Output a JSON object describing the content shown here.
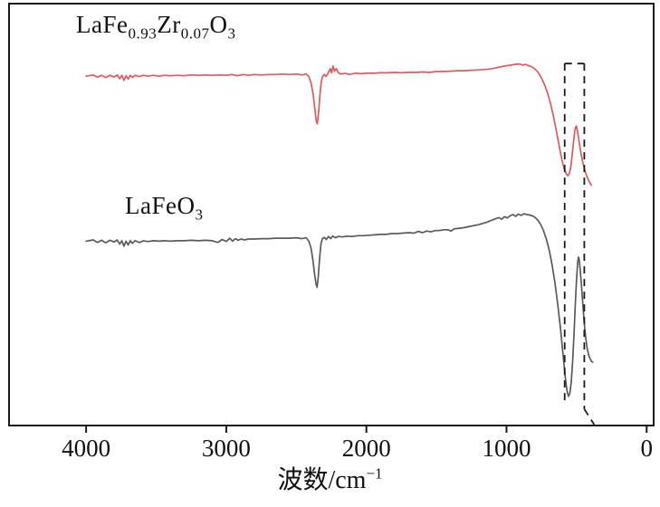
{
  "figure": {
    "background": "#ffffff",
    "frame_color": "#1a1a1a",
    "annotation_color": "#1a1a1a"
  },
  "axis": {
    "xlabel_base": "波数/cm",
    "xlabel_sup": "−1"
  },
  "labels": {
    "red": {
      "segments": [
        "LaFe",
        "0.93",
        "Zr",
        "0.07",
        "O",
        "3"
      ],
      "plain": "LaFe0.93Zr0.07O3"
    },
    "gray": {
      "segments": [
        "LaFeO",
        "3"
      ],
      "plain": "LaFeO3"
    }
  },
  "chart_data": {
    "type": "line",
    "title": "",
    "xlabel": "波数/cm⁻¹",
    "ylabel": "",
    "x_ticks": [
      4000,
      3000,
      2000,
      1000,
      0
    ],
    "xlim": [
      4550,
      -50
    ],
    "ylim": [
      0,
      1
    ],
    "grid": false,
    "legend_position": "inline-labels",
    "x_axis_reversed": true,
    "series": [
      {
        "id": "spectrum-lafe093zr007o3",
        "name": "LaFe0.93Zr0.07O3",
        "color": "#e05a5c",
        "points": [
          [
            4000,
            0.828
          ],
          [
            3950,
            0.831
          ],
          [
            3920,
            0.826
          ],
          [
            3890,
            0.83
          ],
          [
            3860,
            0.825
          ],
          [
            3830,
            0.83
          ],
          [
            3800,
            0.826
          ],
          [
            3780,
            0.831
          ],
          [
            3760,
            0.822
          ],
          [
            3745,
            0.83
          ],
          [
            3730,
            0.818
          ],
          [
            3715,
            0.829
          ],
          [
            3700,
            0.821
          ],
          [
            3685,
            0.83
          ],
          [
            3670,
            0.825
          ],
          [
            3650,
            0.83
          ],
          [
            3620,
            0.827
          ],
          [
            3590,
            0.83
          ],
          [
            3560,
            0.828
          ],
          [
            3520,
            0.83
          ],
          [
            3480,
            0.828
          ],
          [
            3440,
            0.83
          ],
          [
            3400,
            0.829
          ],
          [
            3350,
            0.83
          ],
          [
            3300,
            0.829
          ],
          [
            3250,
            0.831
          ],
          [
            3200,
            0.83
          ],
          [
            3150,
            0.831
          ],
          [
            3100,
            0.83
          ],
          [
            3050,
            0.831
          ],
          [
            3000,
            0.83
          ],
          [
            2960,
            0.832
          ],
          [
            2920,
            0.829
          ],
          [
            2880,
            0.832
          ],
          [
            2840,
            0.83
          ],
          [
            2800,
            0.832
          ],
          [
            2750,
            0.831
          ],
          [
            2700,
            0.832
          ],
          [
            2650,
            0.832
          ],
          [
            2600,
            0.833
          ],
          [
            2550,
            0.832
          ],
          [
            2500,
            0.833
          ],
          [
            2460,
            0.831
          ],
          [
            2430,
            0.833
          ],
          [
            2410,
            0.827
          ],
          [
            2395,
            0.812
          ],
          [
            2380,
            0.785
          ],
          [
            2368,
            0.752
          ],
          [
            2358,
            0.722
          ],
          [
            2350,
            0.715
          ],
          [
            2342,
            0.74
          ],
          [
            2332,
            0.782
          ],
          [
            2322,
            0.815
          ],
          [
            2312,
            0.828
          ],
          [
            2300,
            0.832
          ],
          [
            2288,
            0.827
          ],
          [
            2272,
            0.836
          ],
          [
            2258,
            0.846
          ],
          [
            2248,
            0.836
          ],
          [
            2238,
            0.852
          ],
          [
            2228,
            0.84
          ],
          [
            2215,
            0.846
          ],
          [
            2200,
            0.836
          ],
          [
            2180,
            0.833
          ],
          [
            2150,
            0.835
          ],
          [
            2120,
            0.832
          ],
          [
            2080,
            0.835
          ],
          [
            2040,
            0.834
          ],
          [
            2000,
            0.835
          ],
          [
            1950,
            0.835
          ],
          [
            1900,
            0.836
          ],
          [
            1850,
            0.836
          ],
          [
            1800,
            0.837
          ],
          [
            1750,
            0.836
          ],
          [
            1700,
            0.837
          ],
          [
            1650,
            0.837
          ],
          [
            1600,
            0.838
          ],
          [
            1550,
            0.837
          ],
          [
            1500,
            0.839
          ],
          [
            1450,
            0.839
          ],
          [
            1400,
            0.84
          ],
          [
            1350,
            0.841
          ],
          [
            1300,
            0.841
          ],
          [
            1250,
            0.842
          ],
          [
            1200,
            0.843
          ],
          [
            1150,
            0.844
          ],
          [
            1100,
            0.846
          ],
          [
            1060,
            0.849
          ],
          [
            1030,
            0.851
          ],
          [
            1000,
            0.853
          ],
          [
            970,
            0.854
          ],
          [
            940,
            0.856
          ],
          [
            910,
            0.857
          ],
          [
            885,
            0.854
          ],
          [
            865,
            0.856
          ],
          [
            845,
            0.853
          ],
          [
            825,
            0.851
          ],
          [
            805,
            0.847
          ],
          [
            785,
            0.841
          ],
          [
            765,
            0.832
          ],
          [
            745,
            0.82
          ],
          [
            725,
            0.805
          ],
          [
            705,
            0.786
          ],
          [
            685,
            0.762
          ],
          [
            665,
            0.733
          ],
          [
            645,
            0.7
          ],
          [
            625,
            0.664
          ],
          [
            605,
            0.63
          ],
          [
            590,
            0.61
          ],
          [
            575,
            0.597
          ],
          [
            562,
            0.592
          ],
          [
            552,
            0.597
          ],
          [
            542,
            0.612
          ],
          [
            532,
            0.64
          ],
          [
            522,
            0.672
          ],
          [
            514,
            0.695
          ],
          [
            508,
            0.706
          ],
          [
            502,
            0.71
          ],
          [
            496,
            0.702
          ],
          [
            488,
            0.686
          ],
          [
            478,
            0.664
          ],
          [
            468,
            0.644
          ],
          [
            458,
            0.627
          ],
          [
            448,
            0.613
          ],
          [
            438,
            0.601
          ],
          [
            425,
            0.589
          ],
          [
            410,
            0.578
          ],
          [
            395,
            0.57
          ]
        ]
      },
      {
        "id": "spectrum-lafeo3",
        "name": "LaFeO3",
        "color": "#5a5a5a",
        "points": [
          [
            4000,
            0.437
          ],
          [
            3950,
            0.44
          ],
          [
            3920,
            0.434
          ],
          [
            3890,
            0.439
          ],
          [
            3860,
            0.433
          ],
          [
            3830,
            0.439
          ],
          [
            3800,
            0.435
          ],
          [
            3780,
            0.44
          ],
          [
            3760,
            0.43
          ],
          [
            3745,
            0.438
          ],
          [
            3730,
            0.425
          ],
          [
            3715,
            0.437
          ],
          [
            3700,
            0.428
          ],
          [
            3685,
            0.438
          ],
          [
            3670,
            0.432
          ],
          [
            3650,
            0.438
          ],
          [
            3620,
            0.434
          ],
          [
            3590,
            0.438
          ],
          [
            3560,
            0.436
          ],
          [
            3520,
            0.438
          ],
          [
            3480,
            0.437
          ],
          [
            3440,
            0.438
          ],
          [
            3400,
            0.437
          ],
          [
            3350,
            0.438
          ],
          [
            3300,
            0.438
          ],
          [
            3250,
            0.439
          ],
          [
            3200,
            0.438
          ],
          [
            3150,
            0.439
          ],
          [
            3100,
            0.438
          ],
          [
            3060,
            0.434
          ],
          [
            3030,
            0.441
          ],
          [
            3000,
            0.436
          ],
          [
            2975,
            0.444
          ],
          [
            2955,
            0.437
          ],
          [
            2935,
            0.443
          ],
          [
            2915,
            0.439
          ],
          [
            2895,
            0.442
          ],
          [
            2870,
            0.44
          ],
          [
            2840,
            0.442
          ],
          [
            2800,
            0.442
          ],
          [
            2750,
            0.443
          ],
          [
            2700,
            0.443
          ],
          [
            2650,
            0.444
          ],
          [
            2600,
            0.444
          ],
          [
            2550,
            0.444
          ],
          [
            2500,
            0.445
          ],
          [
            2460,
            0.443
          ],
          [
            2430,
            0.445
          ],
          [
            2410,
            0.437
          ],
          [
            2395,
            0.42
          ],
          [
            2382,
            0.392
          ],
          [
            2370,
            0.36
          ],
          [
            2360,
            0.336
          ],
          [
            2352,
            0.328
          ],
          [
            2344,
            0.352
          ],
          [
            2334,
            0.396
          ],
          [
            2324,
            0.43
          ],
          [
            2314,
            0.443
          ],
          [
            2300,
            0.446
          ],
          [
            2286,
            0.441
          ],
          [
            2270,
            0.448
          ],
          [
            2255,
            0.443
          ],
          [
            2240,
            0.449
          ],
          [
            2220,
            0.445
          ],
          [
            2200,
            0.448
          ],
          [
            2170,
            0.447
          ],
          [
            2140,
            0.449
          ],
          [
            2100,
            0.448
          ],
          [
            2060,
            0.45
          ],
          [
            2020,
            0.45
          ],
          [
            1980,
            0.451
          ],
          [
            1940,
            0.452
          ],
          [
            1900,
            0.453
          ],
          [
            1860,
            0.453
          ],
          [
            1820,
            0.455
          ],
          [
            1780,
            0.455
          ],
          [
            1740,
            0.456
          ],
          [
            1700,
            0.457
          ],
          [
            1660,
            0.456
          ],
          [
            1630,
            0.46
          ],
          [
            1600,
            0.457
          ],
          [
            1570,
            0.461
          ],
          [
            1540,
            0.459
          ],
          [
            1510,
            0.462
          ],
          [
            1480,
            0.462
          ],
          [
            1450,
            0.464
          ],
          [
            1420,
            0.464
          ],
          [
            1395,
            0.461
          ],
          [
            1375,
            0.466
          ],
          [
            1350,
            0.467
          ],
          [
            1320,
            0.468
          ],
          [
            1290,
            0.47
          ],
          [
            1260,
            0.472
          ],
          [
            1230,
            0.474
          ],
          [
            1200,
            0.476
          ],
          [
            1170,
            0.479
          ],
          [
            1140,
            0.482
          ],
          [
            1110,
            0.486
          ],
          [
            1080,
            0.49
          ],
          [
            1055,
            0.493
          ],
          [
            1035,
            0.489
          ],
          [
            1015,
            0.495
          ],
          [
            995,
            0.492
          ],
          [
            975,
            0.497
          ],
          [
            955,
            0.5
          ],
          [
            935,
            0.496
          ],
          [
            915,
            0.501
          ],
          [
            895,
            0.498
          ],
          [
            875,
            0.502
          ],
          [
            855,
            0.5
          ],
          [
            835,
            0.499
          ],
          [
            815,
            0.497
          ],
          [
            795,
            0.493
          ],
          [
            775,
            0.486
          ],
          [
            755,
            0.476
          ],
          [
            735,
            0.461
          ],
          [
            715,
            0.441
          ],
          [
            695,
            0.415
          ],
          [
            675,
            0.381
          ],
          [
            655,
            0.339
          ],
          [
            635,
            0.288
          ],
          [
            615,
            0.23
          ],
          [
            598,
            0.172
          ],
          [
            582,
            0.118
          ],
          [
            568,
            0.082
          ],
          [
            558,
            0.069
          ],
          [
            548,
            0.076
          ],
          [
            538,
            0.103
          ],
          [
            528,
            0.152
          ],
          [
            518,
            0.22
          ],
          [
            508,
            0.295
          ],
          [
            499,
            0.352
          ],
          [
            492,
            0.387
          ],
          [
            487,
            0.399
          ],
          [
            482,
            0.394
          ],
          [
            475,
            0.373
          ],
          [
            466,
            0.336
          ],
          [
            456,
            0.29
          ],
          [
            446,
            0.246
          ],
          [
            436,
            0.21
          ],
          [
            424,
            0.182
          ],
          [
            410,
            0.163
          ],
          [
            396,
            0.153
          ],
          [
            385,
            0.15
          ]
        ]
      }
    ],
    "annotations": {
      "dashed_region_segments": [
        {
          "from": [
            585,
            0.858
          ],
          "to": [
            445,
            0.858
          ]
        },
        {
          "from": [
            585,
            0.858
          ],
          "to": [
            585,
            0.054
          ]
        },
        {
          "from": [
            445,
            0.858
          ],
          "to": [
            445,
            0.039
          ]
        },
        {
          "from": [
            445,
            0.039
          ],
          "to": [
            374,
            0.002
          ]
        }
      ],
      "dash_pattern": "8 6"
    }
  }
}
